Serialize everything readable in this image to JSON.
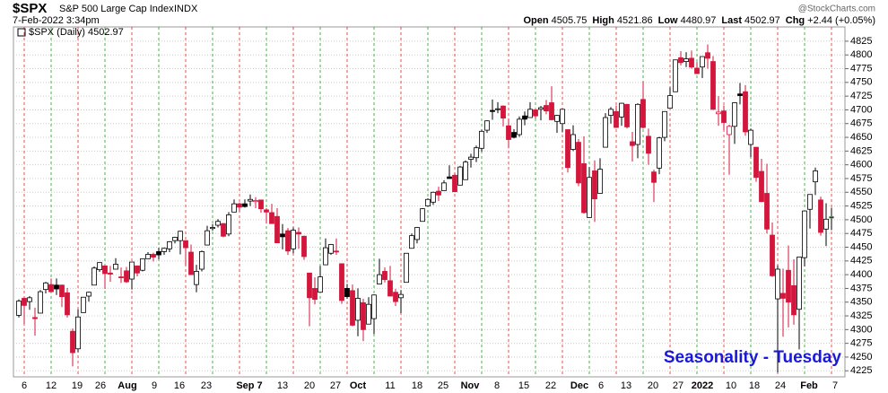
{
  "chart_data": {
    "type": "candlestick",
    "symbol": "$SPX",
    "name": "S&P 500 Large Cap Index",
    "exchange": "INDX",
    "timestamp": "7-Feb-2022 3:34pm",
    "quote": [
      {
        "label": "Open",
        "value": "4505.75"
      },
      {
        "label": "High",
        "value": "4521.86"
      },
      {
        "label": "Low",
        "value": "4480.97"
      },
      {
        "label": "Last",
        "value": "4502.97"
      },
      {
        "label": "Chg",
        "value": "+2.44 (+0.05%)"
      }
    ],
    "watermark": "@StockCharts.com",
    "legend": "$SPX (Daily) 4502.97",
    "annotation": "Seasonality - Tuesday",
    "up_color": "#000000",
    "down_color": "#d4163c",
    "x_labels": [
      "6",
      "12",
      "19",
      "26",
      "Aug",
      "9",
      "16",
      "23",
      "Sep 7",
      "13",
      "20",
      "27",
      "Oct",
      "11",
      "18",
      "25",
      "Nov",
      "8",
      "15",
      "22",
      "Dec",
      "6",
      "13",
      "20",
      "27",
      "2022",
      "10",
      "18",
      "24",
      "Feb",
      "7"
    ],
    "ylim": [
      4214,
      4851
    ],
    "yticks": [
      4225,
      4250,
      4275,
      4300,
      4325,
      4350,
      4375,
      4400,
      4425,
      4450,
      4475,
      4500,
      4525,
      4550,
      4575,
      4600,
      4625,
      4650,
      4675,
      4700,
      4725,
      4750,
      4775,
      4800,
      4825
    ],
    "grid": true,
    "candles": [
      [
        4326,
        4355,
        4322,
        4352
      ],
      [
        4357,
        4359,
        4310,
        4344
      ],
      [
        4351,
        4361,
        4336,
        4358
      ],
      [
        4322,
        4340,
        4289,
        4320
      ],
      [
        4330,
        4372,
        4330,
        4369
      ],
      [
        4373,
        4387,
        4366,
        4385
      ],
      [
        4382,
        4393,
        4369,
        4369
      ],
      [
        4381,
        4393,
        4363,
        4374
      ],
      [
        4381,
        4382,
        4341,
        4360
      ],
      [
        4367,
        4376,
        4322,
        4327
      ],
      [
        4297,
        4302,
        4233,
        4258
      ],
      [
        4265,
        4337,
        4259,
        4323
      ],
      [
        4331,
        4359,
        4331,
        4359
      ],
      [
        4361,
        4369,
        4351,
        4368
      ],
      [
        4381,
        4415,
        4381,
        4412
      ],
      [
        4409,
        4422,
        4405,
        4422
      ],
      [
        4416,
        4416,
        4374,
        4402
      ],
      [
        4403,
        4416,
        4387,
        4401
      ],
      [
        4410,
        4430,
        4410,
        4419
      ],
      [
        4396,
        4413,
        4385,
        4395
      ],
      [
        4407,
        4414,
        4385,
        4387
      ],
      [
        4392,
        4423,
        4373,
        4423
      ],
      [
        4416,
        4416,
        4397,
        4403
      ],
      [
        4408,
        4429,
        4406,
        4429
      ],
      [
        4429,
        4441,
        4429,
        4437
      ],
      [
        4437,
        4440,
        4424,
        4432
      ],
      [
        4442,
        4449,
        4428,
        4436
      ],
      [
        4442,
        4449,
        4436,
        4448
      ],
      [
        4447,
        4461,
        4441,
        4460
      ],
      [
        4462,
        4469,
        4457,
        4468
      ],
      [
        4462,
        4480,
        4437,
        4479
      ],
      [
        4462,
        4462,
        4417,
        4449
      ],
      [
        4441,
        4455,
        4400,
        4400
      ],
      [
        4382,
        4418,
        4368,
        4406
      ],
      [
        4410,
        4444,
        4406,
        4442
      ],
      [
        4454,
        4489,
        4454,
        4480
      ],
      [
        4484,
        4492,
        4480,
        4486
      ],
      [
        4490,
        4501,
        4486,
        4497
      ],
      [
        4493,
        4494,
        4468,
        4470
      ],
      [
        4474,
        4514,
        4470,
        4509
      ],
      [
        4514,
        4537,
        4514,
        4529
      ],
      [
        4529,
        4531,
        4515,
        4523
      ],
      [
        4529,
        4537,
        4522,
        4524
      ],
      [
        4534,
        4546,
        4525,
        4537
      ],
      [
        4533,
        4541,
        4521,
        4535
      ],
      [
        4536,
        4536,
        4513,
        4520
      ],
      [
        4518,
        4521,
        4493,
        4514
      ],
      [
        4513,
        4529,
        4493,
        4493
      ],
      [
        4506,
        4521,
        4458,
        4458
      ],
      [
        4474,
        4492,
        4446,
        4469
      ],
      [
        4480,
        4485,
        4436,
        4443
      ],
      [
        4447,
        4486,
        4439,
        4481
      ],
      [
        4477,
        4486,
        4447,
        4474
      ],
      [
        4470,
        4471,
        4427,
        4433
      ],
      [
        4403,
        4403,
        4306,
        4358
      ],
      [
        4375,
        4395,
        4346,
        4355
      ],
      [
        4368,
        4416,
        4368,
        4396
      ],
      [
        4418,
        4466,
        4418,
        4449
      ],
      [
        4439,
        4456,
        4436,
        4455
      ],
      [
        4443,
        4466,
        4436,
        4443
      ],
      [
        4420,
        4420,
        4347,
        4353
      ],
      [
        4375,
        4383,
        4356,
        4360
      ],
      [
        4371,
        4382,
        4306,
        4308
      ],
      [
        4317,
        4375,
        4288,
        4357
      ],
      [
        4349,
        4356,
        4279,
        4300
      ],
      [
        4310,
        4359,
        4310,
        4346
      ],
      [
        4320,
        4364,
        4292,
        4363
      ],
      [
        4383,
        4429,
        4383,
        4400
      ],
      [
        4406,
        4413,
        4386,
        4391
      ],
      [
        4389,
        4416,
        4361,
        4361
      ],
      [
        4368,
        4374,
        4343,
        4351
      ],
      [
        4358,
        4372,
        4330,
        4364
      ],
      [
        4386,
        4439,
        4386,
        4439
      ],
      [
        4448,
        4475,
        4448,
        4471
      ],
      [
        4464,
        4487,
        4457,
        4486
      ],
      [
        4497,
        4521,
        4497,
        4520
      ],
      [
        4525,
        4539,
        4524,
        4537
      ],
      [
        4532,
        4551,
        4527,
        4550
      ],
      [
        4552,
        4560,
        4534,
        4545
      ],
      [
        4553,
        4572,
        4553,
        4567
      ],
      [
        4578,
        4599,
        4575,
        4575
      ],
      [
        4581,
        4585,
        4551,
        4551
      ],
      [
        4563,
        4598,
        4563,
        4596
      ],
      [
        4573,
        4608,
        4573,
        4605
      ],
      [
        4610,
        4620,
        4595,
        4614
      ],
      [
        4613,
        4635,
        4605,
        4631
      ],
      [
        4630,
        4664,
        4624,
        4661
      ],
      [
        4663,
        4681,
        4658,
        4680
      ],
      [
        4699,
        4719,
        4682,
        4697
      ],
      [
        4701,
        4714,
        4694,
        4702
      ],
      [
        4707,
        4708,
        4670,
        4685
      ],
      [
        4671,
        4684,
        4630,
        4646
      ],
      [
        4659,
        4665,
        4648,
        4650
      ],
      [
        4655,
        4688,
        4651,
        4683
      ],
      [
        4689,
        4697,
        4672,
        4683
      ],
      [
        4686,
        4714,
        4686,
        4701
      ],
      [
        4700,
        4701,
        4684,
        4689
      ],
      [
        4701,
        4707,
        4681,
        4704
      ],
      [
        4708,
        4718,
        4692,
        4698
      ],
      [
        4713,
        4743,
        4681,
        4682
      ],
      [
        4679,
        4691,
        4658,
        4690
      ],
      [
        4675,
        4702,
        4659,
        4701
      ],
      [
        4664,
        4664,
        4586,
        4595
      ],
      [
        4628,
        4672,
        4625,
        4655
      ],
      [
        4641,
        4647,
        4561,
        4567
      ],
      [
        4602,
        4652,
        4511,
        4513
      ],
      [
        4504,
        4596,
        4504,
        4577
      ],
      [
        4589,
        4608,
        4496,
        4538
      ],
      [
        4548,
        4612,
        4548,
        4592
      ],
      [
        4632,
        4694,
        4632,
        4686
      ],
      [
        4690,
        4705,
        4675,
        4701
      ],
      [
        4697,
        4708,
        4667,
        4668
      ],
      [
        4687,
        4713,
        4671,
        4712
      ],
      [
        4710,
        4711,
        4666,
        4669
      ],
      [
        4642,
        4660,
        4606,
        4635
      ],
      [
        4637,
        4712,
        4612,
        4710
      ],
      [
        4719,
        4752,
        4666,
        4668
      ],
      [
        4652,
        4666,
        4600,
        4621
      ],
      [
        4587,
        4591,
        4532,
        4568
      ],
      [
        4594,
        4651,
        4583,
        4649
      ],
      [
        4650,
        4697,
        4643,
        4697
      ],
      [
        4703,
        4741,
        4703,
        4726
      ],
      [
        4733,
        4791,
        4733,
        4791
      ],
      [
        4795,
        4807,
        4781,
        4786
      ],
      [
        4788,
        4805,
        4778,
        4793
      ],
      [
        4794,
        4808,
        4775,
        4778
      ],
      [
        4776,
        4787,
        4765,
        4766
      ],
      [
        4778,
        4797,
        4758,
        4797
      ],
      [
        4804,
        4819,
        4775,
        4794
      ],
      [
        4788,
        4798,
        4700,
        4701
      ],
      [
        4693,
        4725,
        4671,
        4696
      ],
      [
        4698,
        4708,
        4663,
        4677
      ],
      [
        4655,
        4673,
        4582,
        4670
      ],
      [
        4670,
        4714,
        4638,
        4713
      ],
      [
        4729,
        4749,
        4710,
        4726
      ],
      [
        4733,
        4745,
        4653,
        4660
      ],
      [
        4637,
        4666,
        4614,
        4663
      ],
      [
        4632,
        4632,
        4569,
        4577
      ],
      [
        4588,
        4611,
        4532,
        4533
      ],
      [
        4548,
        4602,
        4475,
        4483
      ],
      [
        4472,
        4495,
        4396,
        4398
      ],
      [
        4356,
        4417,
        4222,
        4410
      ],
      [
        4366,
        4411,
        4287,
        4357
      ],
      [
        4408,
        4453,
        4304,
        4350
      ],
      [
        4380,
        4428,
        4309,
        4327
      ],
      [
        4337,
        4432,
        4264,
        4432
      ],
      [
        4431,
        4516,
        4415,
        4516
      ],
      [
        4519,
        4546,
        4484,
        4546
      ],
      [
        4569,
        4595,
        4545,
        4589
      ],
      [
        4536,
        4542,
        4471,
        4477
      ],
      [
        4483,
        4530,
        4452,
        4501
      ],
      [
        4505.75,
        4521.86,
        4480.97,
        4502.97
      ]
    ]
  }
}
